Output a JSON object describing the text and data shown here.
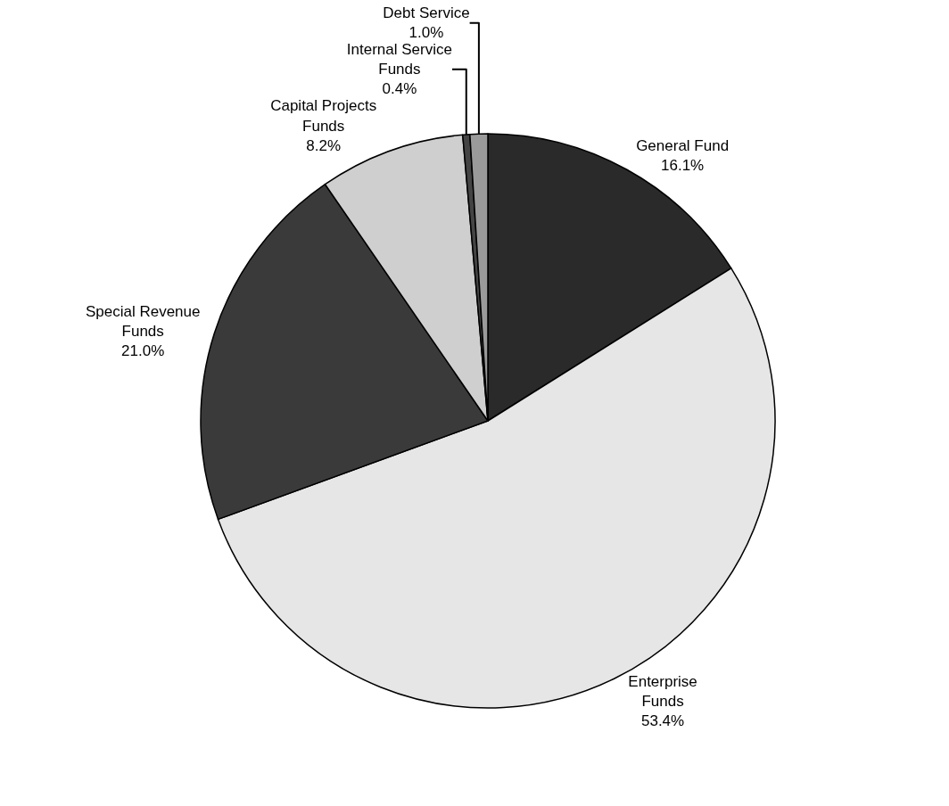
{
  "chart_data": {
    "type": "pie",
    "categories": [
      "General Fund",
      "Enterprise Funds",
      "Special Revenue Funds",
      "Capital Projects Funds",
      "Internal Service Funds",
      "Debt Service"
    ],
    "values": [
      16.1,
      53.4,
      21.0,
      8.2,
      0.4,
      1.0
    ],
    "value_labels": [
      "16.1%",
      "53.4%",
      "21.0%",
      "8.2%",
      "0.4%",
      "1.0%"
    ],
    "colors": [
      "#2a2a2a",
      "#e6e6e6",
      "#3a3a3a",
      "#cfcfcf",
      "#444444",
      "#9a9a9a"
    ],
    "legend": false
  }
}
